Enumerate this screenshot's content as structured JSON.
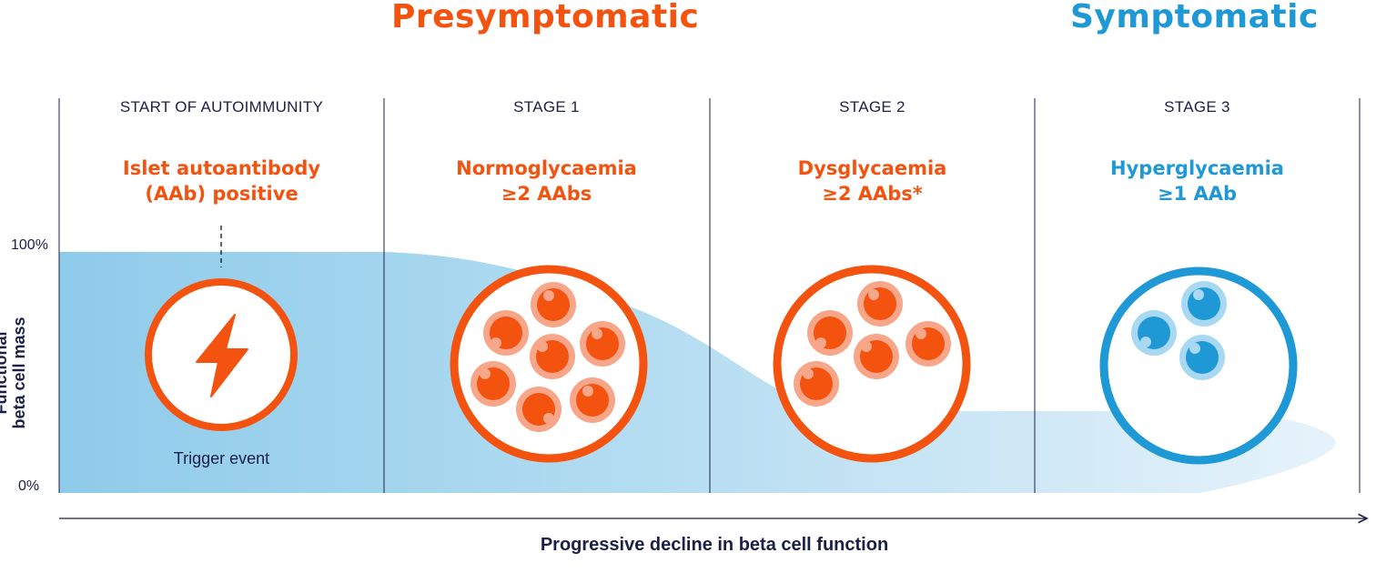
{
  "phases": {
    "presymptomatic": "Presymptomatic",
    "symptomatic": "Symptomatic"
  },
  "stages": [
    {
      "label": "START OF AUTOIMMUNITY",
      "line1": "Islet autoantibody",
      "line2": "(AAb) positive",
      "color": "#f4520f"
    },
    {
      "label": "STAGE 1",
      "line1": "Normoglycaemia",
      "line2": "≥2 AAbs",
      "color": "#f4520f"
    },
    {
      "label": "STAGE 2",
      "line1": "Dysglycaemia",
      "line2": "≥2 AAbs*",
      "color": "#f4520f"
    },
    {
      "label": "STAGE 3",
      "line1": "Hyperglycaemia",
      "line2": "≥1 AAb",
      "color": "#1f98d6"
    }
  ],
  "y_axis": {
    "label_line1": "Functional",
    "label_line2": "beta cell mass",
    "tick_top": "100%",
    "tick_bottom": "0%"
  },
  "x_axis": {
    "label": "Progressive decline in beta cell function"
  },
  "trigger": {
    "label": "Trigger event",
    "icon": "lightning-bolt-icon"
  },
  "colors": {
    "presymptomatic": "#f4520f",
    "symptomatic": "#1f98d6",
    "text": "#1c1f47",
    "beta_cell_mass_fill": "#a9d6ef"
  },
  "islet_cell_counts": {
    "stage_1": 7,
    "stage_2": 5,
    "stage_3": 3
  }
}
